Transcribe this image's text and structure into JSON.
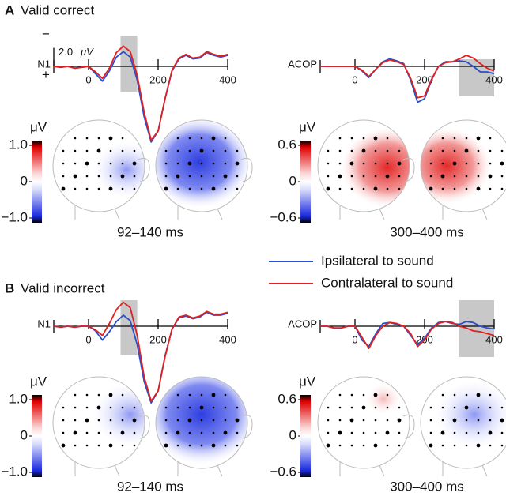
{
  "chart_data": [
    {
      "type": "line",
      "panel": "A",
      "title": "Valid correct",
      "label": "N1",
      "polarity_labels": [
        "−",
        "+"
      ],
      "scale_bar": {
        "value": 2,
        "label": "2.0",
        "unit": "μV"
      },
      "x": [
        -100,
        -80,
        -60,
        -40,
        -20,
        0,
        20,
        40,
        60,
        80,
        100,
        120,
        140,
        160,
        180,
        200,
        220,
        240,
        260,
        280,
        300,
        320,
        340,
        360,
        380,
        400
      ],
      "xlim": [
        -100,
        400
      ],
      "xticks": [
        0,
        200,
        400
      ],
      "ylim": [
        -3.5,
        8.5
      ],
      "y_inverted": true,
      "window": [
        92,
        140
      ],
      "window_label": "92–140 ms",
      "colorbar": {
        "unit": "μV",
        "clim": [
          -1,
          1
        ],
        "ticks": [
          {
            "value": 1,
            "label": "1.0"
          },
          0,
          {
            "value": -1,
            "label": "−1.0"
          }
        ]
      },
      "series": [
        {
          "name": "Ipsilateral to sound",
          "color": "#2a4fcc",
          "values": [
            0,
            0.1,
            0,
            0.2,
            0.1,
            0,
            0.8,
            1.6,
            0.5,
            -1.0,
            -1.6,
            -1.0,
            1.5,
            5.5,
            8.2,
            7.0,
            3.5,
            0.5,
            -0.8,
            -1.2,
            -0.8,
            -0.9,
            -1.5,
            -1.2,
            -1.0,
            -1.2
          ]
        },
        {
          "name": "Contralateral to sound",
          "color": "#e02020",
          "values": [
            0,
            0.1,
            0,
            0.2,
            0.1,
            0,
            0.6,
            1.3,
            0.2,
            -1.5,
            -2.2,
            -1.6,
            1.0,
            5.0,
            8.0,
            7.0,
            3.5,
            0.4,
            -0.9,
            -1.3,
            -0.9,
            -1.0,
            -1.6,
            -1.3,
            -1.1,
            -1.3
          ]
        }
      ]
    },
    {
      "type": "line",
      "label": "ACOP",
      "x": [
        -100,
        -80,
        -60,
        -40,
        -20,
        0,
        20,
        40,
        60,
        80,
        100,
        120,
        140,
        160,
        180,
        200,
        220,
        240,
        260,
        280,
        300,
        320,
        340,
        360,
        380,
        400
      ],
      "xlim": [
        -100,
        400
      ],
      "xticks": [
        0,
        200,
        400
      ],
      "ylim": [
        -3.5,
        8.5
      ],
      "y_inverted": true,
      "window": [
        300,
        400
      ],
      "window_label": "300–400 ms",
      "colorbar": {
        "unit": "μV",
        "clim": [
          -0.6,
          0.6
        ],
        "ticks": [
          0.6,
          0,
          {
            "value": -0.6,
            "label": "−0.6"
          }
        ]
      },
      "series": [
        {
          "name": "Ipsilateral to sound",
          "color": "#2a4fcc",
          "values": [
            0,
            0,
            0,
            0,
            0,
            0,
            0.5,
            1.2,
            0.3,
            -0.5,
            -0.8,
            -0.6,
            -0.3,
            1.5,
            3.9,
            3.5,
            1.5,
            0,
            -0.5,
            -0.5,
            -0.6,
            -0.5,
            0,
            0.6,
            0.6,
            0.8
          ]
        },
        {
          "name": "Contralateral to sound",
          "color": "#e02020",
          "values": [
            0,
            0,
            0,
            0,
            0,
            0,
            0.4,
            1.1,
            0.3,
            -0.4,
            -0.7,
            -0.5,
            -0.2,
            1.3,
            3.4,
            3.2,
            1.4,
            0,
            -0.4,
            -0.5,
            -0.8,
            -1.2,
            -0.9,
            -0.3,
            0.2,
            0.5
          ]
        }
      ]
    },
    {
      "type": "line",
      "panel": "B",
      "title": "Valid incorrect",
      "label": "N1",
      "x": [
        -100,
        -80,
        -60,
        -40,
        -20,
        0,
        20,
        40,
        60,
        80,
        100,
        120,
        140,
        160,
        180,
        200,
        220,
        240,
        260,
        280,
        300,
        320,
        340,
        360,
        380,
        400
      ],
      "xlim": [
        -100,
        400
      ],
      "xticks": [
        0,
        200,
        400
      ],
      "ylim": [
        -3.5,
        8.5
      ],
      "y_inverted": true,
      "window": [
        92,
        140
      ],
      "window_label": "92–140 ms",
      "colorbar": {
        "unit": "μV",
        "clim": [
          -1,
          1
        ],
        "ticks": [
          {
            "value": 1,
            "label": "1.0"
          },
          0,
          {
            "value": -1,
            "label": "−1.0"
          }
        ]
      },
      "series": [
        {
          "name": "Ipsilateral to sound",
          "color": "#2a4fcc",
          "values": [
            0,
            0.1,
            0,
            0.1,
            0,
            0,
            0.5,
            1.5,
            0.6,
            -0.5,
            -1.2,
            -0.6,
            2.0,
            6.0,
            8.3,
            7.0,
            3.2,
            0.3,
            -0.9,
            -1.1,
            -0.8,
            -1.0,
            -1.5,
            -1.2,
            -1.2,
            -1.4
          ]
        },
        {
          "name": "Contralateral to sound",
          "color": "#e02020",
          "values": [
            0,
            0.1,
            0,
            0.1,
            0,
            0,
            0.4,
            1.0,
            -0.3,
            -1.8,
            -2.6,
            -2.0,
            1.0,
            5.5,
            8.1,
            7.0,
            3.3,
            0.3,
            -1.0,
            -1.2,
            -0.9,
            -1.1,
            -1.6,
            -1.3,
            -1.3,
            -1.5
          ]
        }
      ]
    },
    {
      "type": "line",
      "label": "ACOP",
      "x": [
        -100,
        -80,
        -60,
        -40,
        -20,
        0,
        20,
        40,
        60,
        80,
        100,
        120,
        140,
        160,
        180,
        200,
        220,
        240,
        260,
        280,
        300,
        320,
        340,
        360,
        380,
        400
      ],
      "xlim": [
        -100,
        400
      ],
      "xticks": [
        0,
        200,
        400
      ],
      "ylim": [
        -3.5,
        8.5
      ],
      "y_inverted": true,
      "window": [
        300,
        400
      ],
      "window_label": "300–400 ms",
      "colorbar": {
        "unit": "μV",
        "clim": [
          -0.6,
          0.6
        ],
        "ticks": [
          0.6,
          0,
          {
            "value": -0.6,
            "label": "−0.6"
          }
        ]
      },
      "series": [
        {
          "name": "Ipsilateral to sound",
          "color": "#2a4fcc",
          "values": [
            0,
            0,
            0.2,
            0.2,
            0,
            0,
            1.5,
            2.2,
            0.8,
            -0.3,
            -0.4,
            -0.2,
            0,
            1.0,
            2.0,
            1.3,
            0.2,
            -0.4,
            -0.5,
            -0.3,
            -0.2,
            -0.5,
            -0.4,
            0,
            0.2,
            0.3
          ]
        },
        {
          "name": "Contralateral to sound",
          "color": "#e02020",
          "values": [
            0,
            0,
            0.2,
            0.2,
            0,
            0,
            1.2,
            2.4,
            1.0,
            0,
            -0.4,
            -0.3,
            0,
            0.8,
            2.2,
            1.5,
            0.3,
            -0.3,
            -0.5,
            -0.4,
            0,
            0.2,
            0.5,
            0.6,
            0.8,
            1.0
          ]
        }
      ]
    }
  ]
}
